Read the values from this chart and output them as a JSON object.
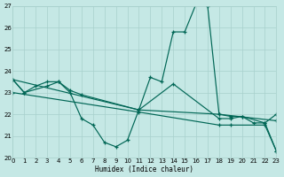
{
  "bg_color": "#c5e8e5",
  "grid_color": "#a8d0cc",
  "line_color": "#006655",
  "xlabel": "Humidex (Indice chaleur)",
  "xlim": [
    0,
    23
  ],
  "ylim": [
    20,
    27
  ],
  "yticks": [
    20,
    21,
    22,
    23,
    24,
    25,
    26,
    27
  ],
  "xticks": [
    0,
    1,
    2,
    3,
    4,
    5,
    6,
    7,
    8,
    9,
    10,
    11,
    12,
    13,
    14,
    15,
    16,
    17,
    18,
    19,
    20,
    21,
    22,
    23
  ],
  "lines": [
    {
      "x": [
        0,
        1,
        2,
        3,
        4,
        5,
        6,
        7,
        8,
        9,
        10,
        11,
        12,
        13,
        14,
        15,
        16,
        17,
        18,
        19,
        20,
        21,
        22,
        23
      ],
      "y": [
        23.6,
        23.0,
        23.3,
        23.5,
        23.5,
        23.0,
        21.8,
        21.5,
        20.7,
        20.5,
        20.8,
        22.2,
        23.7,
        23.5,
        25.8,
        25.8,
        27.1,
        27.0,
        22.0,
        21.9,
        21.9,
        21.6,
        21.6,
        20.3
      ]
    },
    {
      "x": [
        0,
        1,
        3,
        4,
        5,
        6,
        11,
        14,
        18,
        19,
        20,
        22,
        23
      ],
      "y": [
        23.6,
        23.0,
        23.3,
        23.5,
        23.1,
        22.9,
        22.2,
        23.4,
        21.8,
        21.8,
        21.9,
        21.6,
        22.0
      ]
    },
    {
      "x": [
        0,
        11,
        18,
        23
      ],
      "y": [
        23.6,
        22.2,
        22.0,
        21.7
      ]
    },
    {
      "x": [
        0,
        11,
        18,
        19,
        22,
        23
      ],
      "y": [
        23.0,
        22.1,
        21.5,
        21.5,
        21.5,
        20.3
      ]
    }
  ]
}
